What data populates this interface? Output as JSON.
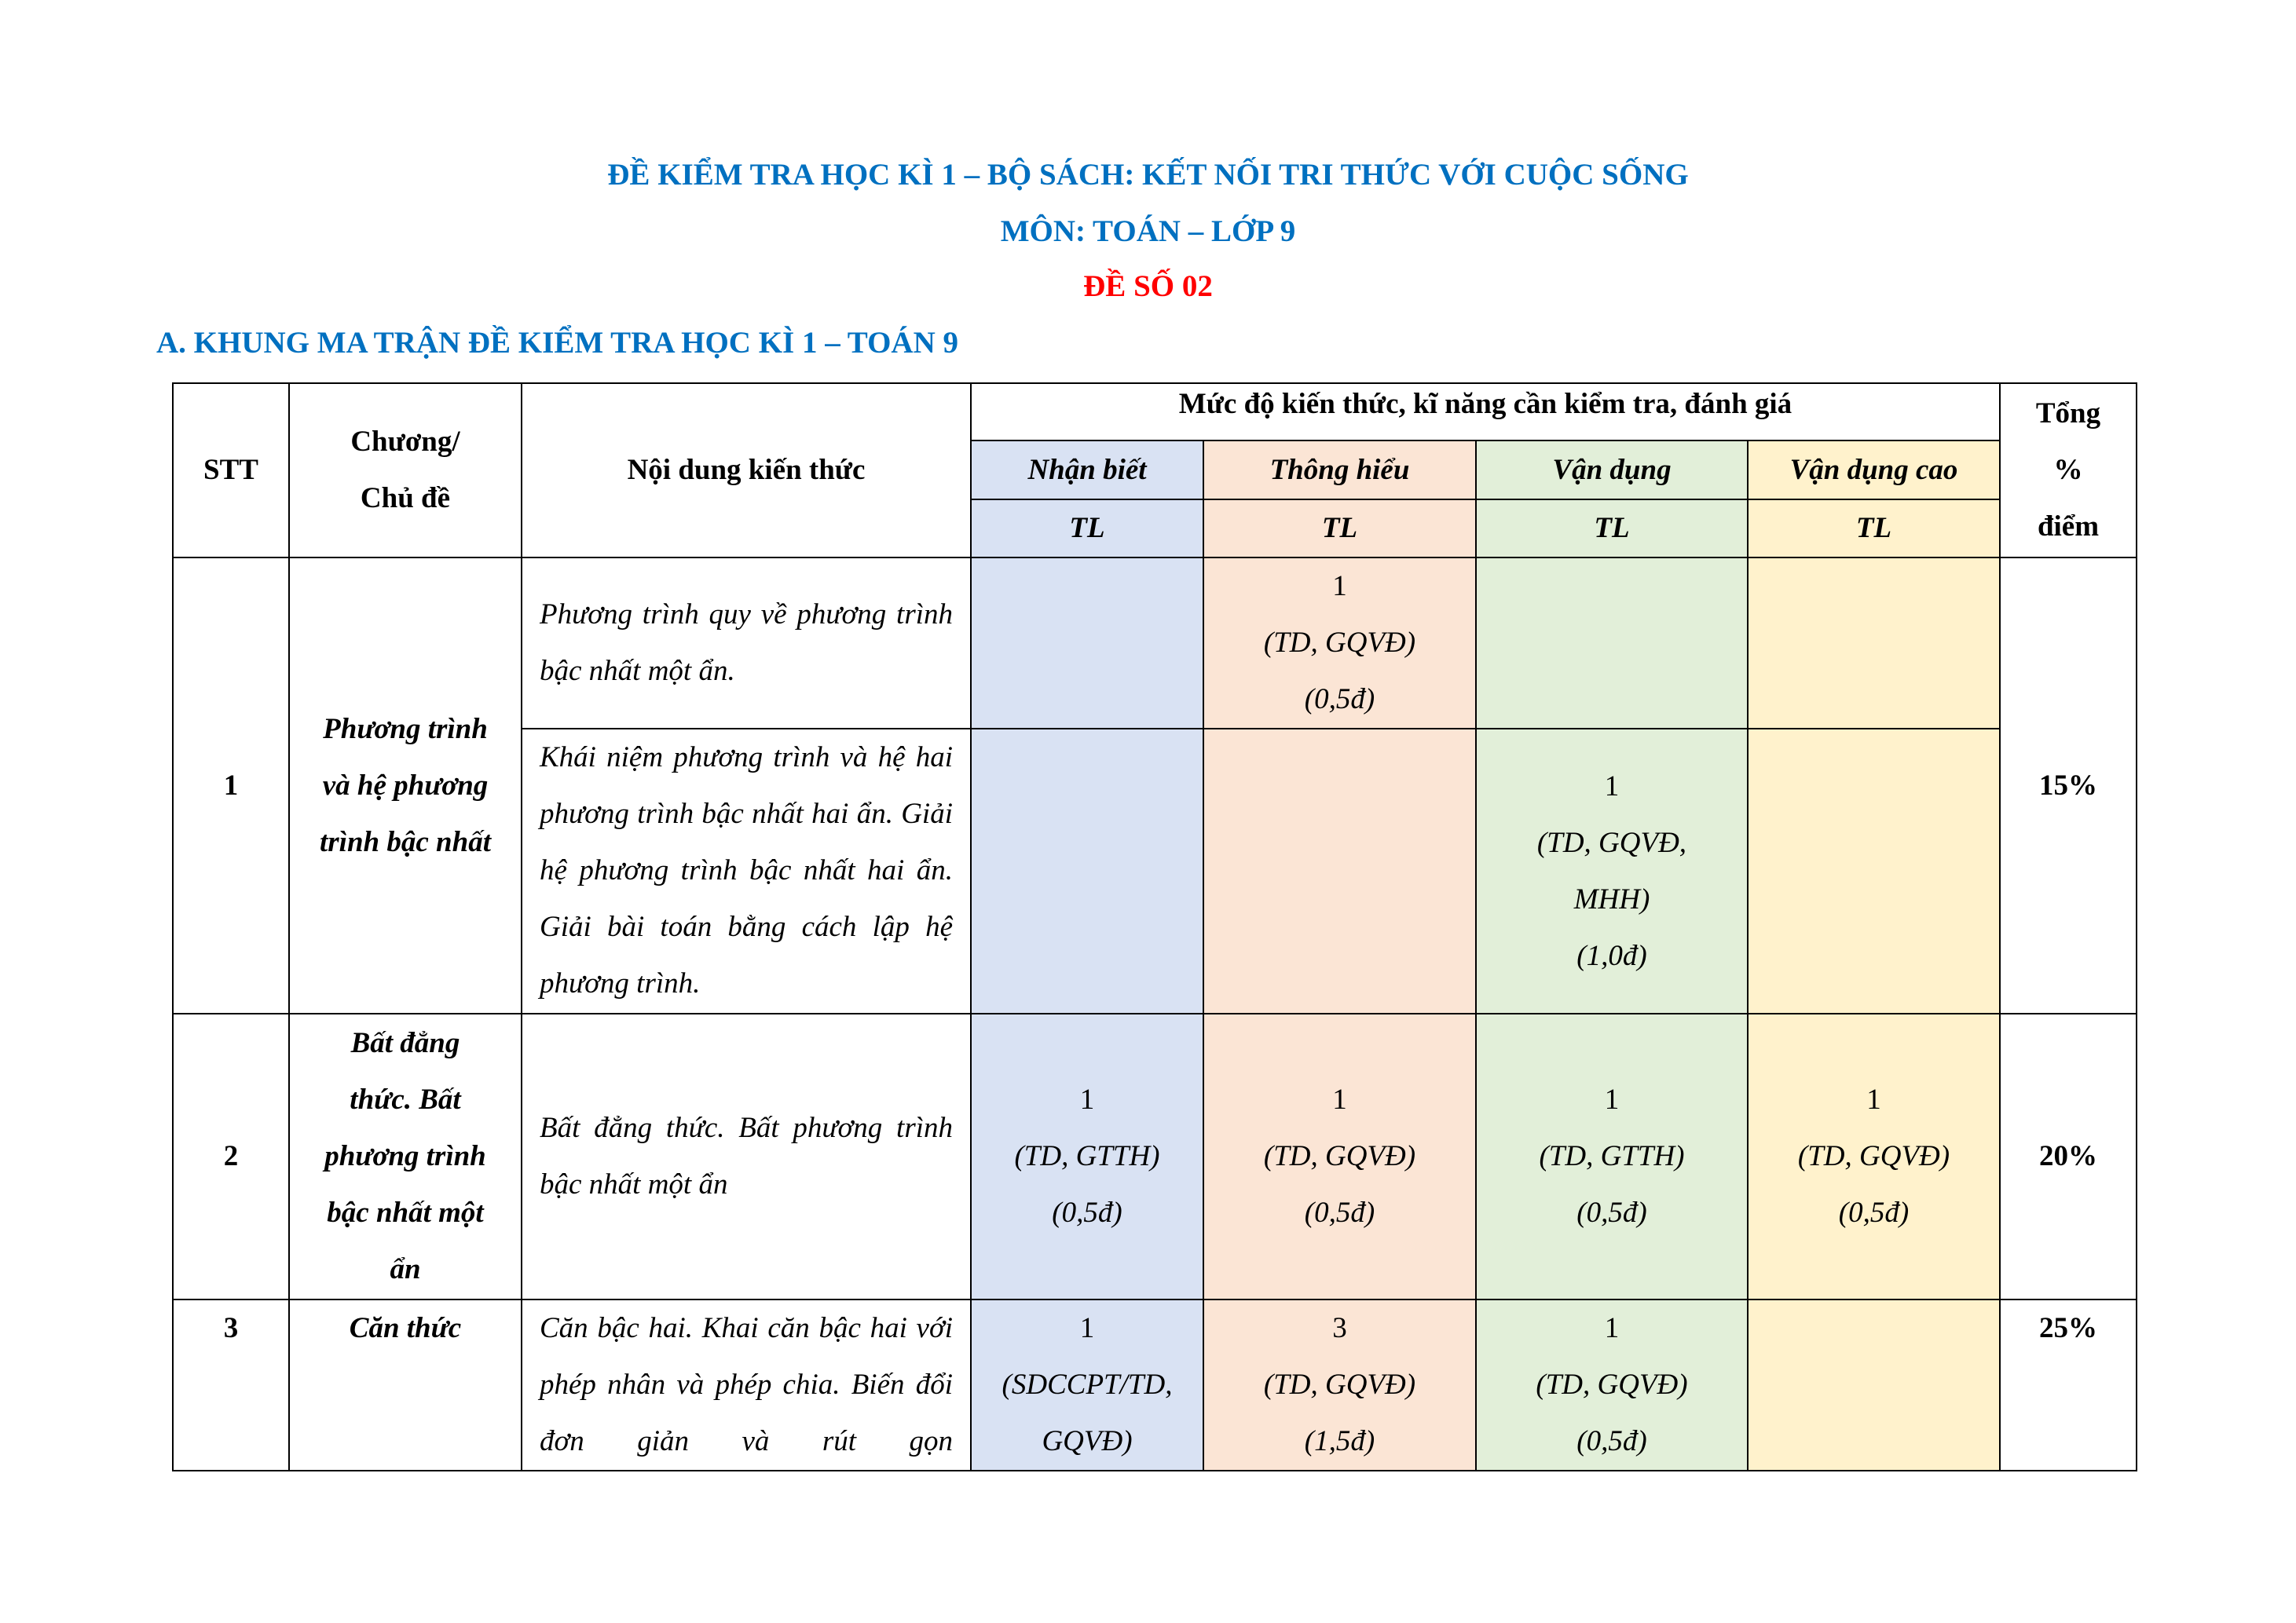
{
  "title": "ĐỀ KIỂM TRA HỌC KÌ 1 – BỘ SÁCH: KẾT NỐI TRI THỨC VỚI CUỘC SỐNG",
  "subtitle": "MÔN: TOÁN – LỚP 9",
  "exam_number": "ĐỀ SỐ 02",
  "section_heading": "A. KHUNG MA TRẬN ĐỀ KIỂM TRA HỌC KÌ 1 – TOÁN 9",
  "colors": {
    "title": "#0070c0",
    "exam_number": "#ff0000",
    "nhan_biet": "#d9e2f3",
    "thong_hieu": "#fbe5d5",
    "van_dung": "#e2efd9",
    "van_dung_cao": "#fff2cc"
  },
  "header": {
    "stt": "STT",
    "chapter": [
      "Chương/",
      "Chủ đề"
    ],
    "content": "Nội dung kiến thức",
    "levels_title": "Mức độ kiến thức, kĩ năng cần kiểm tra, đánh giá",
    "levels": [
      "Nhận biết",
      "Thông hiểu",
      "Vận dụng",
      "Vận dụng cao"
    ],
    "sub": [
      "TL",
      "TL",
      "TL",
      "TL"
    ],
    "total": [
      "Tổng",
      "%",
      "điểm"
    ]
  },
  "rows": [
    {
      "stt": "1",
      "chapter": [
        "Phương trình",
        "và hệ phương",
        "trình bậc nhất"
      ],
      "total": "15%",
      "items": [
        {
          "content": "Phương trình quy về phương trình bậc nhất một ẩn.",
          "thong_hieu": [
            "1",
            "(TD, GQVĐ)",
            "(0,5đ)"
          ]
        },
        {
          "content": "Khái niệm phương trình  và hệ hai phương trình bậc nhất hai ẩn. Giải hệ phương trình bậc nhất hai ẩn. Giải bài toán bằng cách lập hệ phương trình.",
          "van_dung": [
            "1",
            "(TD, GQVĐ,",
            "MHH)",
            "(1,0đ)"
          ]
        }
      ]
    },
    {
      "stt": "2",
      "chapter": [
        "Bất đẳng",
        "thức. Bất",
        "phương trình",
        "bậc nhất một",
        "ẩn"
      ],
      "total": "20%",
      "content": "Bất đẳng thức. Bất phương trình bậc nhất một ẩn",
      "nhan_biet": [
        "1",
        "(TD, GTTH)",
        "(0,5đ)"
      ],
      "thong_hieu": [
        "1",
        "(TD, GQVĐ)",
        "(0,5đ)"
      ],
      "van_dung": [
        "1",
        "(TD, GTTH)",
        "(0,5đ)"
      ],
      "van_dung_cao": [
        "1",
        "(TD, GQVĐ)",
        "(0,5đ)"
      ]
    },
    {
      "stt": "3",
      "chapter": [
        "Căn thức"
      ],
      "total": "25%",
      "content": "Căn bậc hai. Khai căn bậc hai với phép nhân và phép chia. Biến đổi đơn giản và rút gọn",
      "nhan_biet": [
        "1",
        "(SDCCPT/TD,",
        "GQVĐ)"
      ],
      "thong_hieu": [
        "3",
        "(TD, GQVĐ)",
        "(1,5đ)"
      ],
      "van_dung": [
        "1",
        "(TD, GQVĐ)",
        "(0,5đ)"
      ]
    }
  ]
}
